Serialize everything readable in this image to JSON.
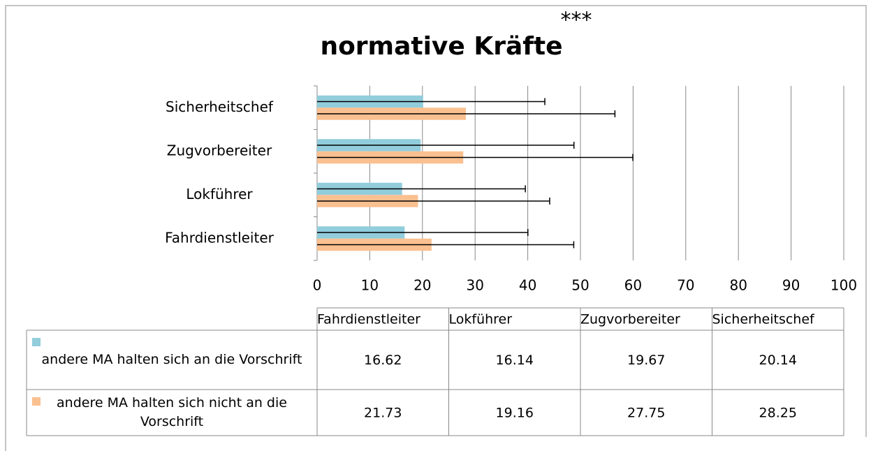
{
  "chart_data": {
    "type": "bar",
    "orientation": "horizontal",
    "title": "normative Kräfte",
    "annotation": "***",
    "categories": [
      "Fahrdienstleiter",
      "Lokführer",
      "Zugvorbereiter",
      "Sicherheitschef"
    ],
    "series": [
      {
        "name": "andere MA halten sich an die Vorschrift",
        "color": "#92cddc",
        "values": [
          16.62,
          16.14,
          19.67,
          20.14
        ],
        "errors": [
          23.4,
          23.4,
          29.1,
          23.1
        ]
      },
      {
        "name": "andere MA halten sich nicht an die Vorschrift",
        "color": "#fac090",
        "values": [
          21.73,
          19.16,
          27.75,
          28.25
        ],
        "errors": [
          27.0,
          25.0,
          32.2,
          28.3
        ]
      }
    ],
    "xlim": [
      0,
      100
    ],
    "xticks": [
      0,
      10,
      20,
      30,
      40,
      50,
      60,
      70,
      80,
      90,
      100
    ],
    "grid": true,
    "data_table": true
  }
}
